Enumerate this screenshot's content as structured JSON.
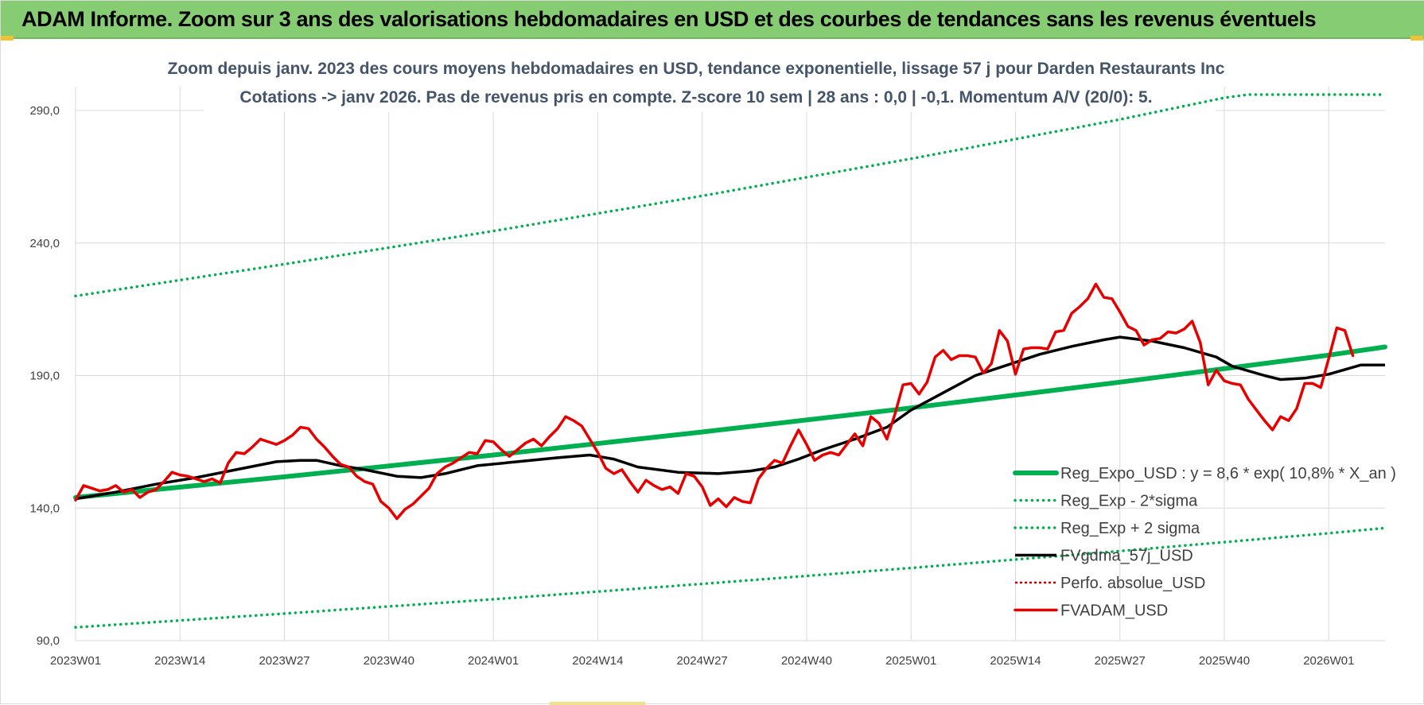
{
  "banner": {
    "title": "ADAM Informe. Zoom sur 3 ans des valorisations hebdomadaires en USD et des courbes de tendances sans les revenus éventuels"
  },
  "colors": {
    "banner_bg": "#86cc72",
    "trend": "#00b050",
    "band": "#00b050",
    "fvgdma": "#000000",
    "perfo": "#c00000",
    "fvadam": "#e60000",
    "grid": "#d9d9d9"
  },
  "chart_data": {
    "type": "line",
    "subtitle_lines": [
      "Zoom depuis janv. 2023 des cours moyens hebdomadaires en USD, tendance exponentielle, lissage 57 j pour Darden Restaurants Inc",
      "Cotations -> janv 2026. Pas de revenus pris en compte. Z-score 10 sem | 28 ans : 0,0 | -0,1. Momentum A/V (20/0): 5."
    ],
    "x_start": "2023W01",
    "x_end": "2026W08",
    "x_ticks": [
      "2023W01",
      "2023W14",
      "2023W27",
      "2023W40",
      "2024W01",
      "2024W14",
      "2024W27",
      "2024W40",
      "2025W01",
      "2025W14",
      "2025W27",
      "2025W40",
      "2026W01"
    ],
    "x_tick_week_index": [
      0,
      13,
      26,
      39,
      52,
      65,
      78,
      91,
      104,
      117,
      130,
      143,
      156
    ],
    "y_ticks": [
      "90,0",
      "140,0",
      "190,0",
      "240,0",
      "290,0"
    ],
    "ylim": [
      90,
      290
    ],
    "grid": true,
    "legend_position": "right",
    "series": [
      {
        "name": "Reg_Expo_USD : y = 8,6 * exp( 10,8% *  X_an )",
        "style": "solid-thick",
        "points": [
          [
            0,
            144.0
          ],
          [
            26,
            151.8
          ],
          [
            52,
            160.0
          ],
          [
            78,
            168.7
          ],
          [
            104,
            177.8
          ],
          [
            130,
            187.5
          ],
          [
            156,
            197.7
          ],
          [
            163,
            200.8
          ]
        ]
      },
      {
        "name": "Reg_Exp - 2*sigma",
        "style": "dotted",
        "points": [
          [
            0,
            95.0
          ],
          [
            26,
            100.2
          ],
          [
            52,
            105.6
          ],
          [
            78,
            111.4
          ],
          [
            104,
            117.4
          ],
          [
            130,
            123.8
          ],
          [
            156,
            130.5
          ],
          [
            163,
            132.5
          ]
        ]
      },
      {
        "name": "Reg_Exp + 2 sigma",
        "style": "dotted",
        "points": [
          [
            0,
            220.0
          ],
          [
            26,
            232.0
          ],
          [
            52,
            244.5
          ],
          [
            78,
            257.8
          ],
          [
            104,
            271.8
          ],
          [
            130,
            286.6
          ],
          [
            143,
            294.8
          ],
          [
            146,
            296.0
          ],
          [
            163,
            296.0
          ]
        ]
      },
      {
        "name": "FVgdma_57j_USD",
        "style": "solid",
        "points": [
          [
            0,
            143.5
          ],
          [
            5,
            146.0
          ],
          [
            10,
            149.0
          ],
          [
            15,
            151.5
          ],
          [
            20,
            154.5
          ],
          [
            25,
            157.5
          ],
          [
            28,
            158.0
          ],
          [
            30,
            158.0
          ],
          [
            33,
            156.0
          ],
          [
            36,
            154.5
          ],
          [
            40,
            152.0
          ],
          [
            43,
            151.5
          ],
          [
            46,
            153.0
          ],
          [
            50,
            156.0
          ],
          [
            55,
            157.5
          ],
          [
            60,
            159.0
          ],
          [
            64,
            160.0
          ],
          [
            67,
            158.5
          ],
          [
            70,
            155.5
          ],
          [
            75,
            153.5
          ],
          [
            80,
            153.0
          ],
          [
            84,
            154.0
          ],
          [
            87,
            155.5
          ],
          [
            90,
            158.5
          ],
          [
            93,
            162.0
          ],
          [
            97,
            166.0
          ],
          [
            101,
            170.5
          ],
          [
            104,
            177.0
          ],
          [
            108,
            183.5
          ],
          [
            112,
            190.0
          ],
          [
            116,
            194.0
          ],
          [
            120,
            198.0
          ],
          [
            124,
            201.0
          ],
          [
            128,
            203.5
          ],
          [
            130,
            204.5
          ],
          [
            134,
            203.0
          ],
          [
            138,
            200.5
          ],
          [
            142,
            197.0
          ],
          [
            144,
            193.5
          ],
          [
            148,
            190.0
          ],
          [
            150,
            188.5
          ],
          [
            153,
            189.0
          ],
          [
            156,
            190.5
          ],
          [
            160,
            194.0
          ],
          [
            163,
            194.0
          ]
        ]
      },
      {
        "name": "Perfo. absolue_USD",
        "style": "dotted-red",
        "points": []
      },
      {
        "name": "FVADAM_USD",
        "style": "solid-thick",
        "points": [
          [
            0,
            143.0
          ],
          [
            1,
            148.5
          ],
          [
            2,
            147.5
          ],
          [
            3,
            146.5
          ],
          [
            4,
            147.0
          ],
          [
            5,
            148.5
          ],
          [
            6,
            146.0
          ],
          [
            7,
            147.0
          ],
          [
            8,
            144.0
          ],
          [
            9,
            146.0
          ],
          [
            10,
            147.0
          ],
          [
            11,
            150.0
          ],
          [
            12,
            153.5
          ],
          [
            13,
            152.5
          ],
          [
            14,
            152.0
          ],
          [
            15,
            151.0
          ],
          [
            16,
            150.0
          ],
          [
            17,
            151.0
          ],
          [
            18,
            149.5
          ],
          [
            19,
            157.0
          ],
          [
            20,
            161.0
          ],
          [
            21,
            160.5
          ],
          [
            22,
            163.0
          ],
          [
            23,
            166.0
          ],
          [
            24,
            165.0
          ],
          [
            25,
            164.0
          ],
          [
            26,
            165.5
          ],
          [
            27,
            167.5
          ],
          [
            28,
            170.5
          ],
          [
            29,
            170.0
          ],
          [
            30,
            166.0
          ],
          [
            31,
            163.0
          ],
          [
            32,
            159.5
          ],
          [
            33,
            156.5
          ],
          [
            34,
            155.5
          ],
          [
            35,
            152.0
          ],
          [
            36,
            150.0
          ],
          [
            37,
            149.0
          ],
          [
            38,
            142.5
          ],
          [
            39,
            140.0
          ],
          [
            40,
            136.0
          ],
          [
            41,
            139.5
          ],
          [
            42,
            141.5
          ],
          [
            43,
            144.5
          ],
          [
            44,
            147.5
          ],
          [
            45,
            153.0
          ],
          [
            46,
            155.5
          ],
          [
            47,
            157.0
          ],
          [
            48,
            159.0
          ],
          [
            49,
            161.0
          ],
          [
            50,
            160.5
          ],
          [
            51,
            165.5
          ],
          [
            52,
            165.0
          ],
          [
            53,
            162.0
          ],
          [
            54,
            159.5
          ],
          [
            55,
            162.0
          ],
          [
            56,
            164.5
          ],
          [
            57,
            166.0
          ],
          [
            58,
            163.5
          ],
          [
            59,
            167.0
          ],
          [
            60,
            170.0
          ],
          [
            61,
            174.5
          ],
          [
            62,
            173.0
          ],
          [
            63,
            171.0
          ],
          [
            64,
            166.0
          ],
          [
            65,
            161.0
          ],
          [
            66,
            155.0
          ],
          [
            67,
            153.0
          ],
          [
            68,
            154.5
          ],
          [
            69,
            150.0
          ],
          [
            70,
            146.0
          ],
          [
            71,
            150.5
          ],
          [
            72,
            148.5
          ],
          [
            73,
            147.0
          ],
          [
            74,
            148.0
          ],
          [
            75,
            145.5
          ],
          [
            76,
            153.0
          ],
          [
            77,
            152.0
          ],
          [
            78,
            148.0
          ],
          [
            79,
            141.0
          ],
          [
            80,
            143.5
          ],
          [
            81,
            140.5
          ],
          [
            82,
            144.0
          ],
          [
            83,
            142.5
          ],
          [
            84,
            142.0
          ],
          [
            85,
            151.0
          ],
          [
            86,
            155.0
          ],
          [
            87,
            158.0
          ],
          [
            88,
            157.0
          ],
          [
            89,
            163.5
          ],
          [
            90,
            169.5
          ],
          [
            91,
            164.0
          ],
          [
            92,
            158.0
          ],
          [
            93,
            160.0
          ],
          [
            94,
            161.0
          ],
          [
            95,
            160.0
          ],
          [
            96,
            164.0
          ],
          [
            97,
            168.0
          ],
          [
            98,
            163.5
          ],
          [
            99,
            174.5
          ],
          [
            100,
            172.0
          ],
          [
            101,
            166.0
          ],
          [
            102,
            175.5
          ],
          [
            103,
            186.5
          ],
          [
            104,
            187.0
          ],
          [
            105,
            183.0
          ],
          [
            106,
            187.5
          ],
          [
            107,
            197.0
          ],
          [
            108,
            199.5
          ],
          [
            109,
            196.0
          ],
          [
            110,
            197.5
          ],
          [
            111,
            197.5
          ],
          [
            112,
            197.0
          ],
          [
            113,
            191.0
          ],
          [
            114,
            194.5
          ],
          [
            115,
            207.0
          ],
          [
            116,
            203.0
          ],
          [
            117,
            190.5
          ],
          [
            118,
            200.0
          ],
          [
            119,
            200.5
          ],
          [
            120,
            200.5
          ],
          [
            121,
            200.0
          ],
          [
            122,
            206.5
          ],
          [
            123,
            207.0
          ],
          [
            124,
            213.5
          ],
          [
            125,
            216.0
          ],
          [
            126,
            219.0
          ],
          [
            127,
            224.5
          ],
          [
            128,
            219.5
          ],
          [
            129,
            219.0
          ],
          [
            130,
            214.0
          ],
          [
            131,
            208.5
          ],
          [
            132,
            207.0
          ],
          [
            133,
            201.5
          ],
          [
            134,
            203.5
          ],
          [
            135,
            204.0
          ],
          [
            136,
            206.5
          ],
          [
            137,
            206.0
          ],
          [
            138,
            207.5
          ],
          [
            139,
            210.5
          ],
          [
            140,
            202.5
          ],
          [
            141,
            186.5
          ],
          [
            142,
            192.0
          ],
          [
            143,
            188.0
          ],
          [
            144,
            187.0
          ],
          [
            145,
            186.5
          ],
          [
            146,
            181.0
          ],
          [
            147,
            177.0
          ],
          [
            148,
            173.0
          ],
          [
            149,
            169.5
          ],
          [
            150,
            174.5
          ],
          [
            151,
            173.0
          ],
          [
            152,
            177.5
          ],
          [
            153,
            187.0
          ],
          [
            154,
            187.0
          ],
          [
            155,
            185.5
          ],
          [
            156,
            196.5
          ],
          [
            157,
            208.0
          ],
          [
            158,
            207.0
          ],
          [
            159,
            197.5
          ]
        ]
      }
    ]
  }
}
